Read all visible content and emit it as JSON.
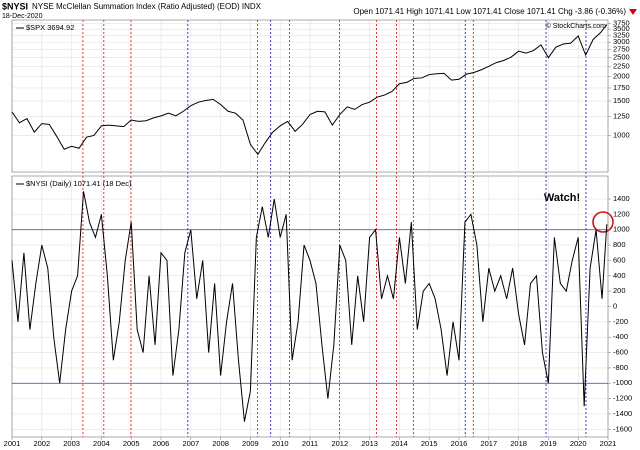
{
  "header": {
    "symbol": "$NYSI",
    "name": "NYSE McClellan Summation Index (Ratio Adjusted) (EOD) INDX",
    "date": "18-Dec-2020",
    "quote": "Open 1071.41 High 1071.41 Low 1071.41 Close 1071.41 Chg -3.86 (-0.36%)",
    "credit": "© StockCharts.com",
    "annotation": "Watch!"
  },
  "vlines": [
    {
      "x": 2003.38,
      "color": "#d22"
    },
    {
      "x": 2004.08,
      "color": "#d22"
    },
    {
      "x": 2004.99,
      "color": "#d22"
    },
    {
      "x": 2006.9,
      "color": "#22c"
    },
    {
      "x": 2009.24,
      "color": "#d22"
    },
    {
      "x": 2009.68,
      "color": "#22c"
    },
    {
      "x": 2010.31,
      "color": "#d22"
    },
    {
      "x": 2011.99,
      "color": "#d22"
    },
    {
      "x": 2013.23,
      "color": "#d22"
    },
    {
      "x": 2013.9,
      "color": "#d22"
    },
    {
      "x": 2014.47,
      "color": "#d22"
    },
    {
      "x": 2016.21,
      "color": "#22c"
    },
    {
      "x": 2016.48,
      "color": "#d22"
    },
    {
      "x": 2018.92,
      "color": "#22c"
    },
    {
      "x": 2020.26,
      "color": "#22c"
    }
  ],
  "chart_data": [
    {
      "type": "line",
      "log_scale": true,
      "grid": true,
      "xlim": [
        2001,
        2021
      ],
      "ylim": [
        650,
        3900
      ],
      "yticks": [
        1000,
        1250,
        1500,
        1750,
        2000,
        2250,
        2500,
        2750,
        3000,
        3250,
        3500,
        3750
      ],
      "x": [
        2001,
        2001.25,
        2001.5,
        2001.75,
        2002,
        2002.25,
        2002.5,
        2002.75,
        2003,
        2003.25,
        2003.5,
        2003.75,
        2004,
        2004.25,
        2004.5,
        2004.75,
        2005,
        2005.25,
        2005.5,
        2005.75,
        2006,
        2006.25,
        2006.5,
        2006.75,
        2007,
        2007.25,
        2007.5,
        2007.75,
        2008,
        2008.25,
        2008.5,
        2008.75,
        2009,
        2009.25,
        2009.5,
        2009.75,
        2010,
        2010.25,
        2010.5,
        2010.75,
        2011,
        2011.25,
        2011.5,
        2011.75,
        2012,
        2012.25,
        2012.5,
        2012.75,
        2013,
        2013.25,
        2013.5,
        2013.75,
        2014,
        2014.25,
        2014.5,
        2014.75,
        2015,
        2015.25,
        2015.5,
        2015.75,
        2016,
        2016.25,
        2016.5,
        2016.75,
        2017,
        2017.25,
        2017.5,
        2017.75,
        2018,
        2018.25,
        2018.5,
        2018.75,
        2019,
        2019.25,
        2019.5,
        2019.75,
        2020,
        2020.25,
        2020.5,
        2020.75,
        2020.96
      ],
      "series": [
        {
          "name": "$SPX 3694.92",
          "color": "#000000",
          "values": [
            1320,
            1160,
            1220,
            1040,
            1150,
            1140,
            990,
            850,
            880,
            860,
            980,
            1000,
            1120,
            1130,
            1120,
            1110,
            1200,
            1180,
            1190,
            1230,
            1260,
            1300,
            1260,
            1330,
            1420,
            1480,
            1510,
            1530,
            1440,
            1330,
            1300,
            1200,
            900,
            800,
            920,
            1040,
            1120,
            1180,
            1050,
            1140,
            1280,
            1330,
            1320,
            1130,
            1280,
            1400,
            1360,
            1440,
            1480,
            1570,
            1610,
            1680,
            1840,
            1870,
            1960,
            1970,
            2050,
            2070,
            2080,
            1920,
            1940,
            2060,
            2100,
            2170,
            2260,
            2360,
            2420,
            2520,
            2700,
            2640,
            2720,
            2910,
            2500,
            2830,
            2940,
            2970,
            3230,
            2580,
            3100,
            3360,
            3694.92
          ]
        }
      ]
    },
    {
      "type": "line",
      "grid": true,
      "xlim": [
        2001,
        2021
      ],
      "ylim": [
        -1700,
        1700
      ],
      "yticks": [
        -1600,
        -1400,
        -1200,
        -1000,
        -800,
        -600,
        -400,
        -200,
        0,
        200,
        400,
        600,
        800,
        1000,
        1200,
        1400
      ],
      "xticks": [
        2001,
        2002,
        2003,
        2004,
        2005,
        2006,
        2007,
        2008,
        2009,
        2010,
        2011,
        2012,
        2013,
        2014,
        2015,
        2016,
        2017,
        2018,
        2019,
        2020,
        2021
      ],
      "hlines": [
        1000,
        -1000
      ],
      "x": [
        2001,
        2001.2,
        2001.4,
        2001.6,
        2001.8,
        2002,
        2002.2,
        2002.4,
        2002.6,
        2002.8,
        2003,
        2003.2,
        2003.4,
        2003.6,
        2003.8,
        2004,
        2004.2,
        2004.4,
        2004.6,
        2004.8,
        2005,
        2005.2,
        2005.4,
        2005.6,
        2005.8,
        2006,
        2006.2,
        2006.4,
        2006.6,
        2006.8,
        2007,
        2007.2,
        2007.4,
        2007.6,
        2007.8,
        2008,
        2008.2,
        2008.4,
        2008.6,
        2008.8,
        2009,
        2009.2,
        2009.4,
        2009.6,
        2009.8,
        2010,
        2010.2,
        2010.4,
        2010.6,
        2010.8,
        2011,
        2011.2,
        2011.4,
        2011.6,
        2011.8,
        2012,
        2012.2,
        2012.4,
        2012.6,
        2012.8,
        2013,
        2013.2,
        2013.4,
        2013.6,
        2013.8,
        2014,
        2014.2,
        2014.4,
        2014.6,
        2014.8,
        2015,
        2015.2,
        2015.4,
        2015.6,
        2015.8,
        2016,
        2016.2,
        2016.4,
        2016.6,
        2016.8,
        2017,
        2017.2,
        2017.4,
        2017.6,
        2017.8,
        2018,
        2018.2,
        2018.4,
        2018.6,
        2018.8,
        2019,
        2019.2,
        2019.4,
        2019.6,
        2019.8,
        2020,
        2020.2,
        2020.4,
        2020.6,
        2020.8,
        2020.96
      ],
      "series": [
        {
          "name": "$NYSI (Daily) 1071.41 (18 Dec)",
          "color": "#000000",
          "values": [
            600,
            -200,
            700,
            -300,
            300,
            800,
            500,
            -400,
            -1000,
            -300,
            200,
            400,
            1500,
            1100,
            900,
            1200,
            400,
            -700,
            -200,
            600,
            1100,
            -300,
            -600,
            400,
            -500,
            700,
            600,
            -900,
            -300,
            700,
            1000,
            100,
            600,
            -600,
            300,
            -900,
            -200,
            300,
            -700,
            -1500,
            -1100,
            900,
            1300,
            900,
            1400,
            900,
            1200,
            -700,
            -200,
            800,
            600,
            300,
            -500,
            -1200,
            -500,
            800,
            600,
            -500,
            400,
            -200,
            900,
            1000,
            100,
            400,
            100,
            900,
            300,
            1100,
            -300,
            200,
            300,
            100,
            -300,
            -900,
            -200,
            -700,
            1100,
            1200,
            800,
            -200,
            500,
            200,
            400,
            100,
            500,
            -100,
            -500,
            300,
            400,
            -600,
            -1000,
            900,
            300,
            200,
            600,
            900,
            -1300,
            500,
            1000,
            100,
            1071.41
          ]
        }
      ]
    }
  ]
}
